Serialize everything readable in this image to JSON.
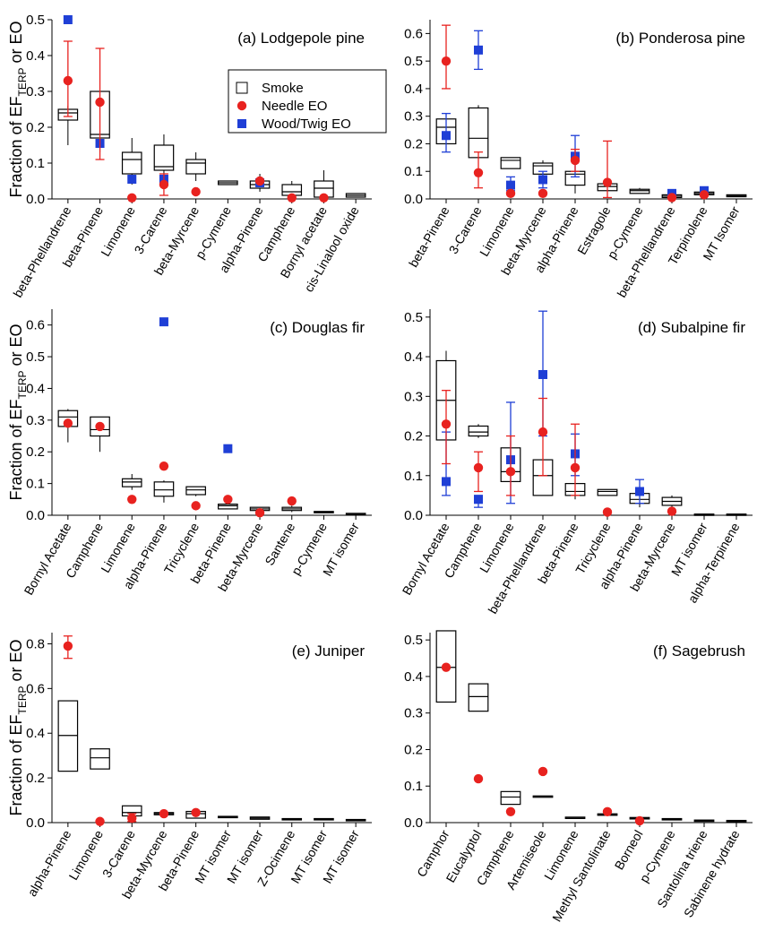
{
  "figure": {
    "ylabel_prefix": "Fraction of EF",
    "ylabel_sub": "TERP",
    "ylabel_suffix": " or EO",
    "legend": [
      {
        "label": "Smoke",
        "marker": "box"
      },
      {
        "label": "Needle EO",
        "marker": "circle",
        "color": "#e8221f"
      },
      {
        "label": "Wood/Twig EO",
        "marker": "square",
        "color": "#1f3fd6"
      }
    ]
  },
  "chart_data": [
    {
      "type": "box",
      "title": "(a) Lodgepole pine",
      "ylim": [
        0,
        0.5
      ],
      "yticks": [
        0.0,
        0.1,
        0.2,
        0.3,
        0.4,
        0.5
      ],
      "categories": [
        "beta-Phellandrene",
        "beta-Pinene",
        "Limonene",
        "3-Carene",
        "beta-Myrcene",
        "p-Cymene",
        "alpha-Pinene",
        "Camphene",
        "Bornyl acetate",
        "cis-Linalool oxide"
      ],
      "smoke": [
        {
          "q1": 0.22,
          "median": 0.24,
          "q3": 0.25,
          "wlo": 0.15,
          "whi": 0.26
        },
        {
          "q1": 0.17,
          "median": 0.18,
          "q3": 0.3,
          "wlo": 0.13,
          "whi": 0.3
        },
        {
          "q1": 0.07,
          "median": 0.11,
          "q3": 0.13,
          "wlo": 0.04,
          "whi": 0.17
        },
        {
          "q1": 0.08,
          "median": 0.09,
          "q3": 0.15,
          "wlo": 0.06,
          "whi": 0.18
        },
        {
          "q1": 0.07,
          "median": 0.1,
          "q3": 0.11,
          "wlo": 0.05,
          "whi": 0.13
        },
        {
          "q1": 0.04,
          "median": 0.045,
          "q3": 0.05,
          "wlo": 0.04,
          "whi": 0.05
        },
        {
          "q1": 0.03,
          "median": 0.04,
          "q3": 0.05,
          "wlo": 0.02,
          "whi": 0.07
        },
        {
          "q1": 0.01,
          "median": 0.02,
          "q3": 0.04,
          "wlo": 0.0,
          "whi": 0.05
        },
        {
          "q1": 0.005,
          "median": 0.03,
          "q3": 0.05,
          "wlo": 0.0,
          "whi": 0.08
        },
        {
          "q1": 0.005,
          "median": 0.01,
          "q3": 0.015,
          "wlo": 0.005,
          "whi": 0.015
        }
      ],
      "needle": [
        {
          "v": 0.33,
          "lo": 0.23,
          "hi": 0.44
        },
        {
          "v": 0.27,
          "lo": 0.11,
          "hi": 0.42
        },
        {
          "v": 0.003
        },
        {
          "v": 0.04,
          "lo": 0.01,
          "hi": 0.07
        },
        {
          "v": 0.02
        },
        null,
        {
          "v": 0.05
        },
        {
          "v": 0.003
        },
        {
          "v": 0.003
        },
        null
      ],
      "wood": [
        {
          "v": 0.5
        },
        {
          "v": 0.155
        },
        {
          "v": 0.055
        },
        {
          "v": 0.055
        },
        null,
        null,
        {
          "v": 0.045
        },
        null,
        null,
        null
      ]
    },
    {
      "type": "box",
      "title": "(b) Ponderosa pine",
      "ylim": [
        0,
        0.65
      ],
      "yticks": [
        0.0,
        0.1,
        0.2,
        0.3,
        0.4,
        0.5,
        0.6
      ],
      "categories": [
        "beta-Pinene",
        "3-Carene",
        "Limonene",
        "beta-Myrcene",
        "alpha-Pinene",
        "Estragole",
        "p-Cymene",
        "beta-Phellandrene",
        "Terpinolene",
        "MT Isomer"
      ],
      "smoke": [
        {
          "q1": 0.2,
          "median": 0.26,
          "q3": 0.29,
          "wlo": 0.17,
          "whi": 0.3
        },
        {
          "q1": 0.15,
          "median": 0.22,
          "q3": 0.33,
          "wlo": 0.1,
          "whi": 0.34
        },
        {
          "q1": 0.11,
          "median": 0.14,
          "q3": 0.15,
          "wlo": 0.11,
          "whi": 0.15
        },
        {
          "q1": 0.09,
          "median": 0.12,
          "q3": 0.13,
          "wlo": 0.06,
          "whi": 0.14
        },
        {
          "q1": 0.05,
          "median": 0.09,
          "q3": 0.1,
          "wlo": 0.02,
          "whi": 0.14
        },
        {
          "q1": 0.03,
          "median": 0.045,
          "q3": 0.055,
          "wlo": 0.02,
          "whi": 0.06
        },
        {
          "q1": 0.02,
          "median": 0.03,
          "q3": 0.035,
          "wlo": 0.02,
          "whi": 0.04
        },
        {
          "q1": 0.005,
          "median": 0.01,
          "q3": 0.015,
          "wlo": 0.005,
          "whi": 0.02
        },
        {
          "q1": 0.015,
          "median": 0.02,
          "q3": 0.025,
          "wlo": 0.01,
          "whi": 0.025
        },
        {
          "q1": 0.008,
          "median": 0.012,
          "q3": 0.015,
          "wlo": 0.008,
          "whi": 0.015
        }
      ],
      "needle": [
        {
          "v": 0.5,
          "lo": 0.4,
          "hi": 0.63
        },
        {
          "v": 0.095,
          "lo": 0.04,
          "hi": 0.17
        },
        {
          "v": 0.02
        },
        {
          "v": 0.02
        },
        {
          "v": 0.14,
          "lo": 0.1,
          "hi": 0.18
        },
        {
          "v": 0.06,
          "lo": 0.005,
          "hi": 0.21
        },
        null,
        {
          "v": 0.005
        },
        {
          "v": 0.015
        },
        null
      ],
      "wood": [
        {
          "v": 0.23,
          "lo": 0.17,
          "hi": 0.31
        },
        {
          "v": 0.54,
          "lo": 0.47,
          "hi": 0.61
        },
        {
          "v": 0.05,
          "lo": 0.03,
          "hi": 0.08
        },
        {
          "v": 0.07,
          "lo": 0.04,
          "hi": 0.1
        },
        {
          "v": 0.155,
          "lo": 0.08,
          "hi": 0.23
        },
        null,
        null,
        {
          "v": 0.02
        },
        {
          "v": 0.03
        },
        null
      ]
    },
    {
      "type": "box",
      "title": "(c) Douglas fir",
      "ylim": [
        0,
        0.65
      ],
      "yticks": [
        0.0,
        0.1,
        0.2,
        0.3,
        0.4,
        0.5,
        0.6
      ],
      "categories": [
        "Bornyl Acetate",
        "Camphene",
        "Limonene",
        "alpha-Pinene",
        "Tricyclene",
        "beta-Pinene",
        "beta-Myrcene",
        "Santene",
        "p-Cymene",
        "MT isomer"
      ],
      "smoke": [
        {
          "q1": 0.28,
          "median": 0.31,
          "q3": 0.33,
          "wlo": 0.23,
          "whi": 0.335
        },
        {
          "q1": 0.25,
          "median": 0.27,
          "q3": 0.31,
          "wlo": 0.2,
          "whi": 0.31
        },
        {
          "q1": 0.09,
          "median": 0.105,
          "q3": 0.115,
          "wlo": 0.08,
          "whi": 0.13
        },
        {
          "q1": 0.06,
          "median": 0.08,
          "q3": 0.105,
          "wlo": 0.04,
          "whi": 0.11
        },
        {
          "q1": 0.065,
          "median": 0.08,
          "q3": 0.09,
          "wlo": 0.06,
          "whi": 0.09
        },
        {
          "q1": 0.02,
          "median": 0.03,
          "q3": 0.035,
          "wlo": 0.02,
          "whi": 0.045
        },
        {
          "q1": 0.015,
          "median": 0.02,
          "q3": 0.025,
          "wlo": 0.015,
          "whi": 0.025
        },
        {
          "q1": 0.015,
          "median": 0.02,
          "q3": 0.025,
          "wlo": 0.01,
          "whi": 0.03
        },
        {
          "q1": 0.008,
          "median": 0.01,
          "q3": 0.012,
          "wlo": 0.008,
          "whi": 0.012
        },
        {
          "q1": 0.003,
          "median": 0.005,
          "q3": 0.006,
          "wlo": 0.003,
          "whi": 0.006
        }
      ],
      "needle": [
        {
          "v": 0.29
        },
        {
          "v": 0.28
        },
        {
          "v": 0.05
        },
        {
          "v": 0.155
        },
        {
          "v": 0.03
        },
        {
          "v": 0.05
        },
        {
          "v": 0.008
        },
        {
          "v": 0.045
        },
        null,
        null
      ],
      "wood": [
        null,
        null,
        null,
        {
          "v": 0.61
        },
        null,
        {
          "v": 0.21
        },
        null,
        null,
        null,
        null
      ]
    },
    {
      "type": "box",
      "title": "(d) Subalpine fir",
      "ylim": [
        0,
        0.52
      ],
      "yticks": [
        0.0,
        0.1,
        0.2,
        0.3,
        0.4,
        0.5
      ],
      "categories": [
        "Bornyl Acetate",
        "Camphene",
        "Limonene",
        "beta-Phellandrene",
        "beta-Pinene",
        "Tricyclene",
        "alpha-Pinene",
        "beta-Myrcene",
        "MT isomer",
        "alpha-Terpinene"
      ],
      "smoke": [
        {
          "q1": 0.19,
          "median": 0.29,
          "q3": 0.39,
          "wlo": 0.19,
          "whi": 0.415
        },
        {
          "q1": 0.2,
          "median": 0.21,
          "q3": 0.225,
          "wlo": 0.195,
          "whi": 0.23
        },
        {
          "q1": 0.085,
          "median": 0.11,
          "q3": 0.17,
          "wlo": 0.06,
          "whi": 0.18
        },
        {
          "q1": 0.05,
          "median": 0.1,
          "q3": 0.14,
          "wlo": 0.05,
          "whi": 0.14
        },
        {
          "q1": 0.05,
          "median": 0.06,
          "q3": 0.08,
          "wlo": 0.04,
          "whi": 0.09
        },
        {
          "q1": 0.05,
          "median": 0.06,
          "q3": 0.065,
          "wlo": 0.05,
          "whi": 0.065
        },
        {
          "q1": 0.03,
          "median": 0.04,
          "q3": 0.055,
          "wlo": 0.02,
          "whi": 0.06
        },
        {
          "q1": 0.025,
          "median": 0.035,
          "q3": 0.045,
          "wlo": 0.02,
          "whi": 0.05
        },
        {
          "q1": 0.001,
          "median": 0.002,
          "q3": 0.003,
          "wlo": 0.001,
          "whi": 0.003
        },
        {
          "q1": 0.001,
          "median": 0.002,
          "q3": 0.003,
          "wlo": 0.001,
          "whi": 0.003
        }
      ],
      "needle": [
        {
          "v": 0.23,
          "lo": 0.13,
          "hi": 0.315
        },
        {
          "v": 0.12,
          "lo": 0.06,
          "hi": 0.16
        },
        {
          "v": 0.11,
          "lo": 0.05,
          "hi": 0.2
        },
        {
          "v": 0.21,
          "lo": 0.1,
          "hi": 0.295
        },
        {
          "v": 0.12,
          "lo": 0.05,
          "hi": 0.23
        },
        {
          "v": 0.008
        },
        null,
        {
          "v": 0.01
        },
        null,
        null
      ],
      "wood": [
        {
          "v": 0.085,
          "lo": 0.05,
          "hi": 0.21
        },
        {
          "v": 0.04,
          "lo": 0.02,
          "hi": 0.05
        },
        {
          "v": 0.14,
          "lo": 0.03,
          "hi": 0.285
        },
        {
          "v": 0.355,
          "lo": 0.2,
          "hi": 0.515
        },
        {
          "v": 0.155,
          "lo": 0.1,
          "hi": 0.205
        },
        null,
        {
          "v": 0.06,
          "lo": 0.03,
          "hi": 0.09
        },
        null,
        null,
        null
      ]
    },
    {
      "type": "box",
      "title": "(e) Juniper",
      "ylim": [
        0,
        0.85
      ],
      "yticks": [
        0.0,
        0.2,
        0.4,
        0.6,
        0.8
      ],
      "categories": [
        "alpha-Pinene",
        "Limonene",
        "3-Carene",
        "beta-Myrcene",
        "beta-Pinene",
        "MT isomer",
        "MT isomer",
        "Z-Ocimene",
        "MT isomer",
        "MT isomer"
      ],
      "smoke": [
        {
          "q1": 0.23,
          "median": 0.39,
          "q3": 0.545,
          "wlo": 0.23,
          "whi": 0.545
        },
        {
          "q1": 0.24,
          "median": 0.29,
          "q3": 0.33,
          "wlo": 0.24,
          "whi": 0.33
        },
        {
          "q1": 0.03,
          "median": 0.045,
          "q3": 0.075,
          "wlo": 0.03,
          "whi": 0.075
        },
        {
          "q1": 0.035,
          "median": 0.04,
          "q3": 0.045,
          "wlo": 0.035,
          "whi": 0.045
        },
        {
          "q1": 0.02,
          "median": 0.04,
          "q3": 0.05,
          "wlo": 0.02,
          "whi": 0.05
        },
        {
          "q1": 0.022,
          "median": 0.025,
          "q3": 0.028,
          "wlo": 0.022,
          "whi": 0.028
        },
        {
          "q1": 0.015,
          "median": 0.02,
          "q3": 0.025,
          "wlo": 0.015,
          "whi": 0.025
        },
        {
          "q1": 0.012,
          "median": 0.015,
          "q3": 0.018,
          "wlo": 0.012,
          "whi": 0.018
        },
        {
          "q1": 0.012,
          "median": 0.015,
          "q3": 0.018,
          "wlo": 0.012,
          "whi": 0.018
        },
        {
          "q1": 0.01,
          "median": 0.012,
          "q3": 0.014,
          "wlo": 0.01,
          "whi": 0.014
        }
      ],
      "needle": [
        {
          "v": 0.79,
          "lo": 0.735,
          "hi": 0.835
        },
        {
          "v": 0.005
        },
        {
          "v": 0.02,
          "lo": 0.005,
          "hi": 0.04
        },
        {
          "v": 0.04
        },
        {
          "v": 0.045
        },
        null,
        null,
        null,
        null,
        null
      ],
      "wood": [
        null,
        null,
        null,
        null,
        null,
        null,
        null,
        null,
        null,
        null
      ]
    },
    {
      "type": "box",
      "title": "(f) Sagebrush",
      "ylim": [
        0,
        0.52
      ],
      "yticks": [
        0.0,
        0.1,
        0.2,
        0.3,
        0.4,
        0.5
      ],
      "categories": [
        "Camphor",
        "Eucalyptol",
        "Camphene",
        "Artemiseole",
        "Limonene",
        "Methyl Santolinate",
        "Borneol",
        "p-Cymene",
        "Santolina triene",
        "Sabinene hydrate"
      ],
      "smoke": [
        {
          "q1": 0.33,
          "median": 0.425,
          "q3": 0.525,
          "wlo": 0.33,
          "whi": 0.525
        },
        {
          "q1": 0.305,
          "median": 0.345,
          "q3": 0.38,
          "wlo": 0.305,
          "whi": 0.38
        },
        {
          "q1": 0.05,
          "median": 0.07,
          "q3": 0.085,
          "wlo": 0.05,
          "whi": 0.085
        },
        {
          "q1": 0.071,
          "median": 0.072,
          "q3": 0.073,
          "wlo": 0.071,
          "whi": 0.073
        },
        {
          "q1": 0.013,
          "median": 0.014,
          "q3": 0.015,
          "wlo": 0.013,
          "whi": 0.015
        },
        {
          "q1": 0.02,
          "median": 0.022,
          "q3": 0.024,
          "wlo": 0.02,
          "whi": 0.024
        },
        {
          "q1": 0.01,
          "median": 0.012,
          "q3": 0.014,
          "wlo": 0.01,
          "whi": 0.014
        },
        {
          "q1": 0.009,
          "median": 0.01,
          "q3": 0.011,
          "wlo": 0.009,
          "whi": 0.011
        },
        {
          "q1": 0.005,
          "median": 0.006,
          "q3": 0.007,
          "wlo": 0.005,
          "whi": 0.007
        },
        {
          "q1": 0.004,
          "median": 0.005,
          "q3": 0.006,
          "wlo": 0.004,
          "whi": 0.006
        }
      ],
      "needle": [
        {
          "v": 0.425
        },
        {
          "v": 0.12
        },
        {
          "v": 0.03
        },
        {
          "v": 0.14
        },
        null,
        {
          "v": 0.03
        },
        {
          "v": 0.005
        },
        null,
        null,
        null
      ],
      "wood": [
        null,
        null,
        null,
        null,
        null,
        null,
        null,
        null,
        null,
        null
      ]
    }
  ]
}
